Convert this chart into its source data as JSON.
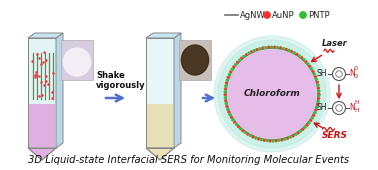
{
  "title": "3D Liquid-state Interfacial SERS for Monitoring Molecular Events",
  "title_fontsize": 7.2,
  "title_style": "italic",
  "bg_color": "#ffffff",
  "legend_agNW": "AgNW",
  "legend_auNP": "AuNP",
  "legend_pntp": "PNTP",
  "chloroform_label": "Chloroform",
  "shake_label": "Shake\nvigorously",
  "laser_label": "Laser",
  "sers_label": "SERS",
  "droplet_fill": "#e8c0e8",
  "droplet_outer": "#a8e8d8",
  "arrow_color": "#5070cc",
  "red_arrow": "#cc1010",
  "agNW_color": "#707070",
  "auNP_color": "#ff3030",
  "pntp_color": "#30c030",
  "chem_dark": "#444444",
  "chem_red": "#cc1010"
}
